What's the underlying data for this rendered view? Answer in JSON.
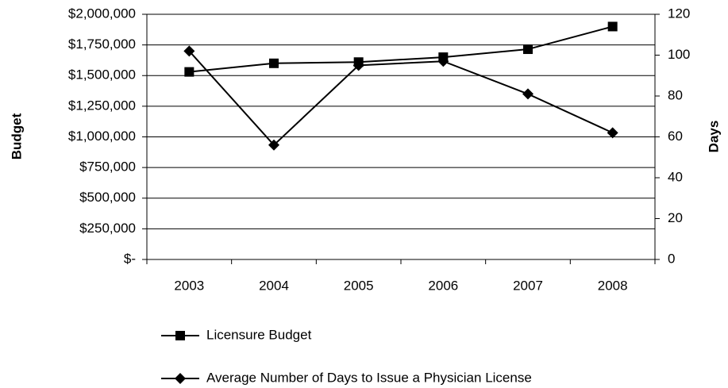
{
  "chart_data": {
    "type": "line",
    "categories": [
      "2003",
      "2004",
      "2005",
      "2006",
      "2007",
      "2008"
    ],
    "y_label": "Budget",
    "y2_label": "Days",
    "series": [
      {
        "name": "Licensure Budget",
        "color": "#000000",
        "marker": "square",
        "values": [
          1530000,
          1600000,
          1610000,
          1650000,
          1715000,
          1900000
        ]
      },
      {
        "name": "Average Number of Days to Issue a Physician License",
        "color": "#000000",
        "marker": "diamond",
        "axis": "y2",
        "values": [
          102,
          56,
          95,
          97,
          81,
          62
        ]
      }
    ],
    "ylim": [
      0,
      2000000
    ],
    "yticks": [
      {
        "value": 0,
        "label": "$-"
      },
      {
        "value": 250000,
        "label": "$250,000"
      },
      {
        "value": 500000,
        "label": "$500,000"
      },
      {
        "value": 750000,
        "label": "$750,000"
      },
      {
        "value": 1000000,
        "label": "$1,000,000"
      },
      {
        "value": 1250000,
        "label": "$1,250,000"
      },
      {
        "value": 1500000,
        "label": "$1,500,000"
      },
      {
        "value": 1750000,
        "label": "$1,750,000"
      },
      {
        "value": 2000000,
        "label": "$2,000,000"
      }
    ],
    "y2lim": [
      0,
      120
    ],
    "y2ticks": [
      0,
      20,
      40,
      60,
      80,
      100,
      120
    ],
    "grid": true,
    "legend": "bottom"
  }
}
